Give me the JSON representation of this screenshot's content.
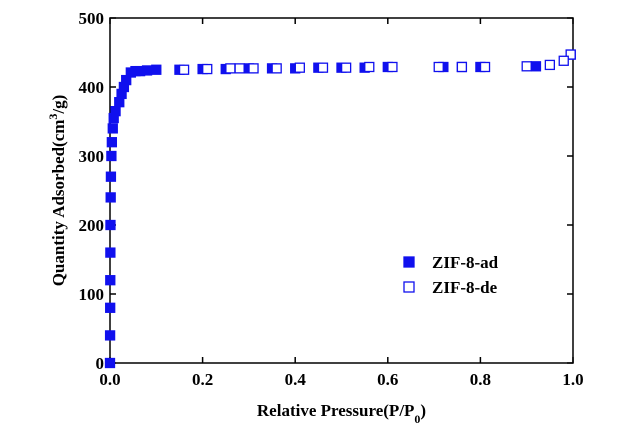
{
  "chart_data": {
    "type": "scatter",
    "xlabel": [
      "Relative Pressure(P/P",
      "0",
      ")"
    ],
    "ylabel": [
      "Quantity Adsorbed(cm",
      "3",
      "/g)"
    ],
    "xlim": [
      0,
      1
    ],
    "ylim": [
      0,
      500
    ],
    "xticks": [
      {
        "value": 0,
        "label": "0.0"
      },
      {
        "value": 0.2,
        "label": "0.2"
      },
      {
        "value": 0.4,
        "label": "0.4"
      },
      {
        "value": 0.6,
        "label": "0.6"
      },
      {
        "value": 0.8,
        "label": "0.8"
      },
      {
        "value": 1,
        "label": "1.0"
      }
    ],
    "yticks": [
      0,
      100,
      200,
      300,
      400,
      500
    ],
    "series": [
      {
        "name": "ZIF-8-ad",
        "color": "#1010ee",
        "marker": "filled",
        "x": [
          0,
          0.0002,
          0.0004,
          0.0006,
          0.0008,
          0.001,
          0.0015,
          0.002,
          0.003,
          0.004,
          0.006,
          0.008,
          0.012,
          0.02,
          0.025,
          0.03,
          0.035,
          0.045,
          0.055,
          0.065,
          0.08,
          0.1,
          0.15,
          0.2,
          0.25,
          0.3,
          0.35,
          0.4,
          0.45,
          0.5,
          0.55,
          0.6,
          0.72,
          0.76,
          0.8,
          0.92,
          0.995
        ],
        "values": [
          0,
          40,
          80,
          120,
          160,
          200,
          240,
          270,
          300,
          320,
          340,
          355,
          365,
          378,
          390,
          400,
          410,
          421,
          423,
          423,
          424,
          425,
          425,
          426,
          426,
          427,
          427,
          427,
          428,
          428,
          428,
          429,
          429,
          429,
          429,
          430,
          447
        ]
      },
      {
        "name": "ZIF-8-de",
        "color": "#1010ee",
        "marker": "open",
        "x": [
          0.995,
          0.98,
          0.95,
          0.9,
          0.81,
          0.76,
          0.71,
          0.61,
          0.56,
          0.51,
          0.46,
          0.41,
          0.36,
          0.31,
          0.28,
          0.26,
          0.21,
          0.16
        ],
        "values": [
          447,
          438,
          432,
          430,
          429,
          429,
          429,
          429,
          429,
          428,
          428,
          428,
          427,
          427,
          427,
          427,
          426,
          425
        ]
      }
    ],
    "legend": "center-right"
  }
}
